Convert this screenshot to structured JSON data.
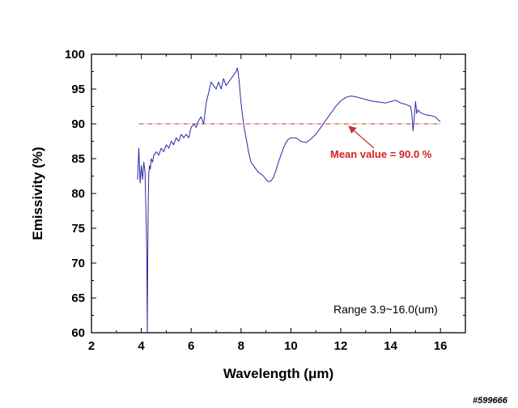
{
  "chart_data": {
    "type": "line",
    "xlabel_text": "Wavelength (",
    "xlabel_unit": "μm",
    "xlabel_close": ")",
    "ylabel": "Emissivity (%)",
    "xlim": [
      2,
      17
    ],
    "ylim": [
      60,
      100
    ],
    "xticks": [
      2,
      4,
      6,
      8,
      10,
      12,
      14,
      16
    ],
    "yticks": [
      60,
      65,
      70,
      75,
      80,
      85,
      90,
      95,
      100
    ],
    "grid": false,
    "series": [
      {
        "color": "#2a2aa8",
        "x": [
          3.85,
          3.9,
          3.95,
          4.0,
          4.05,
          4.1,
          4.15,
          4.2,
          4.22,
          4.24,
          4.26,
          4.28,
          4.3,
          4.33,
          4.36,
          4.4,
          4.45,
          4.5,
          4.6,
          4.7,
          4.8,
          4.9,
          5.0,
          5.1,
          5.2,
          5.3,
          5.4,
          5.5,
          5.6,
          5.7,
          5.8,
          5.9,
          6.0,
          6.1,
          6.2,
          6.3,
          6.4,
          6.5,
          6.6,
          6.7,
          6.8,
          6.9,
          7.0,
          7.1,
          7.2,
          7.3,
          7.4,
          7.5,
          7.6,
          7.7,
          7.8,
          7.85,
          7.9,
          7.95,
          8.0,
          8.1,
          8.2,
          8.3,
          8.4,
          8.5,
          8.6,
          8.7,
          8.8,
          8.9,
          9.0,
          9.1,
          9.2,
          9.3,
          9.4,
          9.5,
          9.6,
          9.7,
          9.8,
          9.9,
          10.0,
          10.2,
          10.4,
          10.6,
          10.8,
          11.0,
          11.2,
          11.4,
          11.6,
          11.8,
          12.0,
          12.2,
          12.4,
          12.6,
          12.8,
          13.0,
          13.2,
          13.4,
          13.6,
          13.8,
          14.0,
          14.2,
          14.4,
          14.6,
          14.8,
          14.85,
          14.9,
          14.95,
          15.0,
          15.05,
          15.1,
          15.15,
          15.2,
          15.4,
          15.6,
          15.8,
          15.9,
          16.0
        ],
        "values": [
          82.0,
          86.5,
          81.5,
          84.0,
          82.0,
          84.5,
          83.0,
          75.0,
          71.0,
          60.0,
          71.5,
          79.0,
          83.0,
          84.0,
          83.5,
          85.0,
          84.5,
          85.5,
          86.0,
          85.5,
          86.5,
          86.0,
          87.0,
          86.5,
          87.5,
          87.0,
          88.0,
          87.5,
          88.5,
          88.0,
          88.5,
          88.0,
          89.5,
          90.0,
          89.5,
          90.5,
          91.0,
          90.0,
          93.0,
          94.5,
          96.0,
          95.5,
          95.0,
          96.0,
          95.0,
          96.5,
          95.5,
          96.0,
          96.5,
          97.0,
          97.5,
          98.0,
          97.0,
          95.0,
          93.0,
          90.0,
          88.0,
          86.0,
          84.5,
          84.0,
          83.5,
          83.0,
          82.8,
          82.5,
          82.0,
          81.7,
          81.8,
          82.3,
          83.3,
          84.5,
          85.5,
          86.5,
          87.3,
          87.8,
          88.0,
          88.0,
          87.5,
          87.3,
          87.8,
          88.5,
          89.5,
          90.5,
          91.5,
          92.5,
          93.3,
          93.8,
          94.0,
          93.9,
          93.7,
          93.5,
          93.3,
          93.2,
          93.1,
          93.0,
          93.2,
          93.4,
          93.0,
          92.8,
          92.5,
          91.5,
          89.0,
          91.0,
          93.2,
          91.5,
          92.0,
          91.8,
          91.6,
          91.3,
          91.2,
          91.0,
          90.6,
          90.3
        ]
      }
    ],
    "mean_line": {
      "value": 90.0,
      "color": "#c0392b"
    },
    "annotations": {
      "mean_text": "Mean value = 90.0 %",
      "range_text": "Range 3.9~16.0(um)",
      "arrow_tip": [
        12.2,
        90.0
      ]
    }
  },
  "watermark": "#599666"
}
